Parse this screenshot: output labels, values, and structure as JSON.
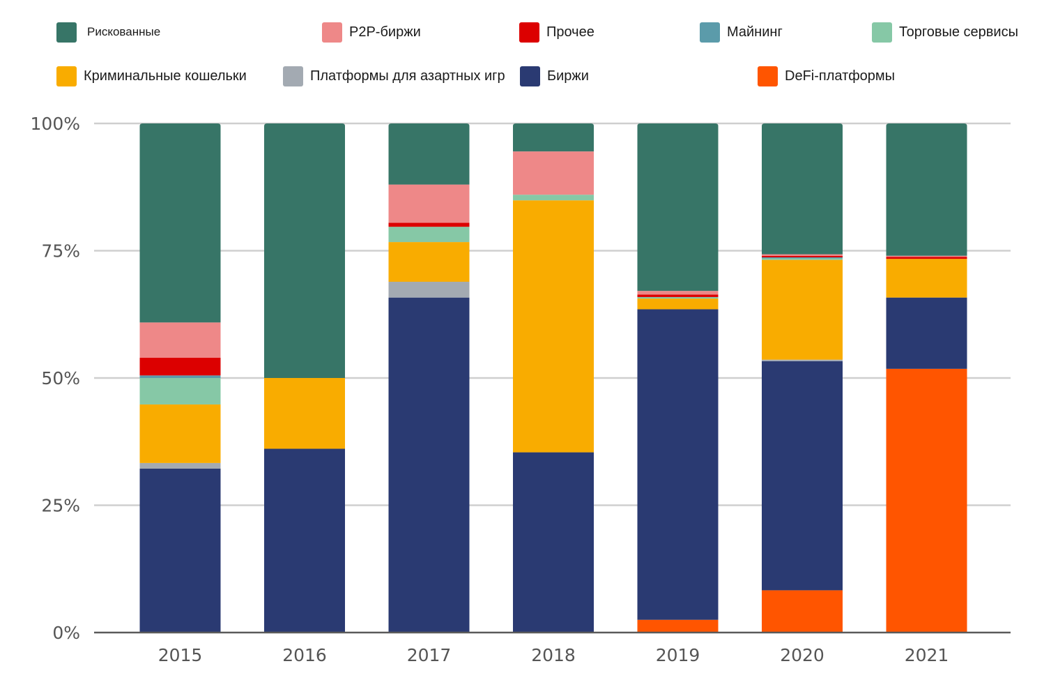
{
  "chart_data": {
    "type": "bar",
    "stacked": true,
    "percent": true,
    "categories": [
      "2015",
      "2016",
      "2017",
      "2018",
      "2019",
      "2020",
      "2021"
    ],
    "ylim": [
      0,
      100
    ],
    "yticks": [
      "0%",
      "25%",
      "50%",
      "75%",
      "100%"
    ],
    "grid": true,
    "legend_position": "top",
    "series": [
      {
        "name": "DeFi-платформы",
        "color": "#FF5500",
        "values": [
          0,
          0,
          0,
          0,
          2.5,
          8.3,
          51.8
        ]
      },
      {
        "name": "Биржи",
        "color": "#2A3A72",
        "values": [
          32.2,
          36.1,
          65.8,
          35.4,
          61.0,
          45.0,
          14.0
        ]
      },
      {
        "name": "Платформы для азартных игр",
        "color": "#A3AAB2",
        "values": [
          1.1,
          0,
          3.1,
          0,
          0,
          0.3,
          0
        ]
      },
      {
        "name": "Криминальные кошельки",
        "color": "#F9AC00",
        "values": [
          11.5,
          13.9,
          7.8,
          49.5,
          2.1,
          19.6,
          7.6
        ]
      },
      {
        "name": "Торговые сервисы",
        "color": "#86C8A6",
        "values": [
          5.2,
          0,
          3.0,
          1.1,
          0.3,
          0.3,
          0
        ]
      },
      {
        "name": "Майнинг",
        "color": "#5B9BAA",
        "values": [
          0.5,
          0,
          0,
          0,
          0,
          0.2,
          0
        ]
      },
      {
        "name": "Прочее",
        "color": "#DC0000",
        "values": [
          3.5,
          0,
          0.8,
          0,
          0.5,
          0.3,
          0.4
        ]
      },
      {
        "name": "P2P-биржи",
        "color": "#EE8888",
        "values": [
          6.9,
          0,
          7.5,
          8.5,
          0.7,
          0.3,
          0.2
        ]
      },
      {
        "name": "Рискованные",
        "color": "#377567",
        "values": [
          39.1,
          50.0,
          12.0,
          5.5,
          32.9,
          25.7,
          26.0
        ]
      }
    ]
  },
  "legend": [
    {
      "name": "Рискованные",
      "color": "#377567"
    },
    {
      "name": "P2P-биржи",
      "color": "#EE8888"
    },
    {
      "name": "Прочее",
      "color": "#DC0000"
    },
    {
      "name": "Майнинг",
      "color": "#5B9BAA"
    },
    {
      "name": "Торговые сервисы",
      "color": "#86C8A6"
    },
    {
      "name": "Криминальные кошельки",
      "color": "#F9AC00"
    },
    {
      "name": "Платформы для азартных игр",
      "color": "#A3AAB2"
    },
    {
      "name": "Биржи",
      "color": "#2A3A72"
    },
    {
      "name": "DeFi-платформы",
      "color": "#FF5500"
    }
  ]
}
